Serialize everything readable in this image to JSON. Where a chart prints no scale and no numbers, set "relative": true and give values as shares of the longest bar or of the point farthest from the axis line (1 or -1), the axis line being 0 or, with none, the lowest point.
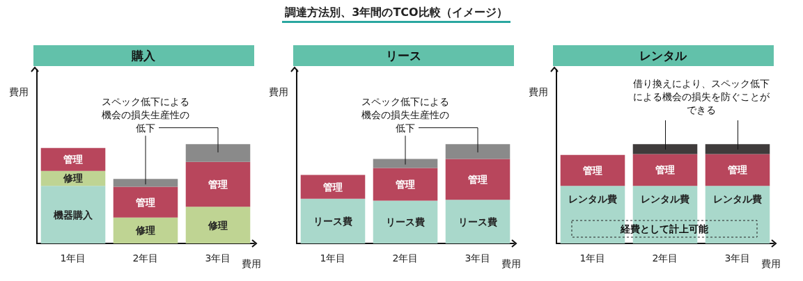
{
  "chart_data": [
    {
      "type": "bar",
      "subtitle": "購入",
      "xlabel": "費用",
      "ylabel": "費用",
      "relative": true,
      "stacked": true,
      "categories": [
        "1年目",
        "2年目",
        "3年目"
      ],
      "series": [
        {
          "name": "機器購入",
          "color": "#a9d8cb",
          "values": [
            0.58,
            null,
            null
          ]
        },
        {
          "name": "修理",
          "color": "#bfd493",
          "values": [
            0.15,
            0.26,
            0.37
          ]
        },
        {
          "name": "管理",
          "color": "#b8465c",
          "values": [
            0.23,
            0.31,
            0.45
          ]
        },
        {
          "color": "#8a8a8a",
          "values": [
            null,
            0.08,
            0.18
          ]
        }
      ],
      "annotations": [
        {
          "text": "スペック低下による機会の損失生産性の低下",
          "x": "2年目",
          "y": 0.65
        }
      ]
    },
    {
      "type": "bar",
      "title": "調達方法別、3年間のTCO比較（イメージ）",
      "subtitle": "リース",
      "xlabel": "費用",
      "ylabel": "費用",
      "relative": true,
      "stacked": true,
      "categories": [
        "1年目",
        "2年目",
        "3年目"
      ],
      "series": [
        {
          "name": "リース費",
          "color": "#a9d8cb",
          "values": [
            0.45,
            0.43,
            0.44
          ]
        },
        {
          "name": "管理",
          "color": "#b8465c",
          "values": [
            0.24,
            0.33,
            0.41
          ]
        },
        {
          "color": "#8a8a8a",
          "values": [
            null,
            0.09,
            0.15
          ]
        }
      ],
      "annotations": [
        {
          "text": "スペック低下による機会の損失生産性の低下",
          "x": "2年目",
          "y": 0.85
        }
      ]
    },
    {
      "type": "bar",
      "subtitle": "レンタル",
      "xlabel": "費用",
      "ylabel": "費用",
      "relative": true,
      "stacked": true,
      "categories": [
        "1年目",
        "2年目",
        "3年目"
      ],
      "series": [
        {
          "name": "レンタル費",
          "color": "#a9d8cb",
          "values": [
            0.58,
            0.58,
            0.58
          ]
        },
        {
          "name": "管理",
          "color": "#b8465c",
          "values": [
            0.31,
            0.32,
            0.32
          ]
        },
        {
          "color": "#3f3b3b",
          "values": [
            null,
            0.1,
            0.1
          ]
        }
      ],
      "annotations": [
        "借り換えにより、スペック低下による機会の損失を防ぐことができる",
        "経費として計上可能"
      ]
    }
  ]
}
